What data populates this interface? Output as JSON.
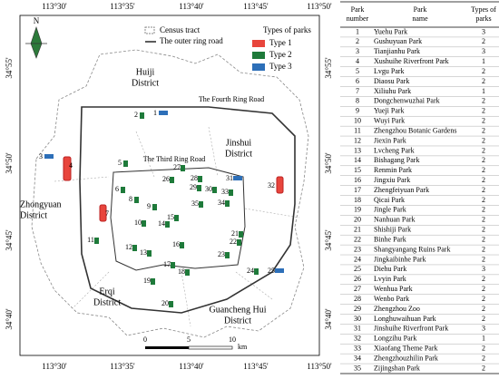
{
  "map": {
    "lon_labels": [
      "113°30'",
      "113°35'",
      "113°40'",
      "113°45'",
      "113°50'"
    ],
    "lat_labels": [
      "34°55'",
      "34°50'",
      "34°45'",
      "34°40'"
    ],
    "legend": {
      "census": "Census tract",
      "ring": "The outer ring road",
      "types_title": "Types of parks",
      "types": [
        "Type 1",
        "Type 2",
        "Type 3"
      ]
    },
    "districts": [
      [
        "Huiji",
        "District"
      ],
      [
        "Jinshui",
        "District"
      ],
      [
        "Zhongyuan",
        "District"
      ],
      [
        "Erqi",
        "District"
      ],
      [
        "Guancheng Hui",
        "District"
      ]
    ],
    "roads": [
      "The Fourth Ring Road",
      "The Third Ring Road"
    ],
    "scale": [
      "0",
      "5",
      "10",
      "km"
    ],
    "north": "N"
  },
  "table": {
    "headers": [
      "Park number",
      "Park name",
      "Types of parks"
    ],
    "rows": [
      [
        1,
        "Yuehu Park",
        3
      ],
      [
        2,
        "Gushuyuan Park",
        2
      ],
      [
        3,
        "Tianjianhu Park",
        3
      ],
      [
        4,
        "Xushuihe Riverfront Park",
        1
      ],
      [
        5,
        "Lvgu Park",
        2
      ],
      [
        6,
        "Diaosu Park",
        2
      ],
      [
        7,
        "Xiliuhu Park",
        1
      ],
      [
        8,
        "Dongchenwuzhai Park",
        2
      ],
      [
        9,
        "Yueji Park",
        2
      ],
      [
        10,
        "Wuyi Park",
        2
      ],
      [
        11,
        "Zhengzhou Botanic Gardens",
        2
      ],
      [
        12,
        "Jiexin Park",
        2
      ],
      [
        13,
        "Lvcheng Park",
        2
      ],
      [
        14,
        "Bishagang Park",
        2
      ],
      [
        15,
        "Renmin Park",
        2
      ],
      [
        16,
        "Jingxiu Park",
        2
      ],
      [
        17,
        "Zhengfeiyuan Park",
        2
      ],
      [
        18,
        "Qicai Park",
        2
      ],
      [
        19,
        "Jingle Park",
        2
      ],
      [
        20,
        "Nanhuan Park",
        2
      ],
      [
        21,
        "Shishiji Park",
        2
      ],
      [
        22,
        "Binhe Park",
        2
      ],
      [
        23,
        "Shangyangang Ruins Park",
        2
      ],
      [
        24,
        "Jingkaibinhe Park",
        2
      ],
      [
        25,
        "Diehu Park",
        3
      ],
      [
        26,
        "Lvyin Park",
        2
      ],
      [
        27,
        "Wenhua Park",
        2
      ],
      [
        28,
        "Wenbo Park",
        2
      ],
      [
        29,
        "Zhengzhou Zoo",
        2
      ],
      [
        30,
        "Longhuwaihuan Park",
        2
      ],
      [
        31,
        "Jinshuihe Riverfront Park",
        3
      ],
      [
        32,
        "Longzihu Park",
        1
      ],
      [
        33,
        "Xiaofang Theme Park",
        2
      ],
      [
        34,
        "Zhengzhouzhilin Park",
        2
      ],
      [
        35,
        "Zijingshan Park",
        2
      ]
    ]
  }
}
